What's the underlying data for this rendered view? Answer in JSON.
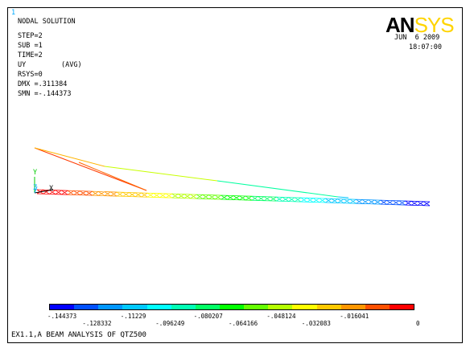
{
  "header": {
    "corner_index": "1",
    "title": "NODAL SOLUTION",
    "step": "STEP=2",
    "sub": "SUB =1",
    "time": "TIME=2",
    "quantity": "UY",
    "avg": "(AVG)",
    "rsys": "RSYS=0",
    "dmx": "DMX =.311384",
    "smn": "SMN =-.144373"
  },
  "logo": {
    "part1": "AN",
    "part2": "SYS"
  },
  "datetime": {
    "date": "JUN  6 2009",
    "time": "18:07:00"
  },
  "axes": {
    "y_label": "Y",
    "x_label": "X",
    "z_label": "Z"
  },
  "legend": {
    "colors": [
      "#0000ff",
      "#0050ff",
      "#0096ff",
      "#00c8ff",
      "#00ffff",
      "#00ffb4",
      "#00ff64",
      "#00ff00",
      "#64ff00",
      "#b4ff00",
      "#ffff00",
      "#ffc800",
      "#ff9600",
      "#ff5000",
      "#ff0000"
    ],
    "ticks_lower": [
      "-.144373",
      "-.11229",
      "-.080207",
      "-.048124",
      "-.016041"
    ],
    "ticks_upper": [
      "-.128332",
      "-.096249",
      "-.064166",
      "-.032083",
      "0"
    ]
  },
  "footer": {
    "caption": "EX1.1,A BEAM ANALYSIS OF QTZ500"
  }
}
